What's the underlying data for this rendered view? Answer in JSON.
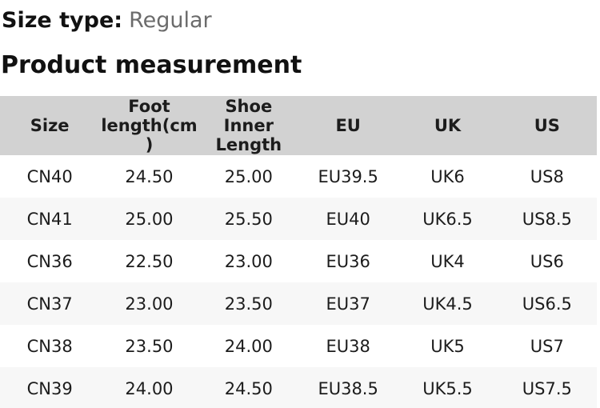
{
  "page": {
    "size_type_label": "Size type:",
    "size_type_value": "Regular",
    "section_title": "Product measurement"
  },
  "table": {
    "columns": [
      "Size",
      "Foot\nlength(cm\n)",
      "Shoe\nInner\nLength",
      "EU",
      "UK",
      "US"
    ],
    "rows": [
      [
        "CN40",
        "24.50",
        "25.00",
        "EU39.5",
        "UK6",
        "US8"
      ],
      [
        "CN41",
        "25.00",
        "25.50",
        "EU40",
        "UK6.5",
        "US8.5"
      ],
      [
        "CN36",
        "22.50",
        "23.00",
        "EU36",
        "UK4",
        "US6"
      ],
      [
        "CN37",
        "23.00",
        "23.50",
        "EU37",
        "UK4.5",
        "US6.5"
      ],
      [
        "CN38",
        "23.50",
        "24.00",
        "EU38",
        "UK5",
        "US7"
      ],
      [
        "CN39",
        "24.00",
        "24.50",
        "EU38.5",
        "UK5.5",
        "US7.5"
      ]
    ]
  },
  "colors": {
    "header_bg": "#d2d2d2",
    "row_alt_bg": "#f7f7f7",
    "text": "#1c1c1c",
    "muted_text": "#6b6b6b"
  }
}
